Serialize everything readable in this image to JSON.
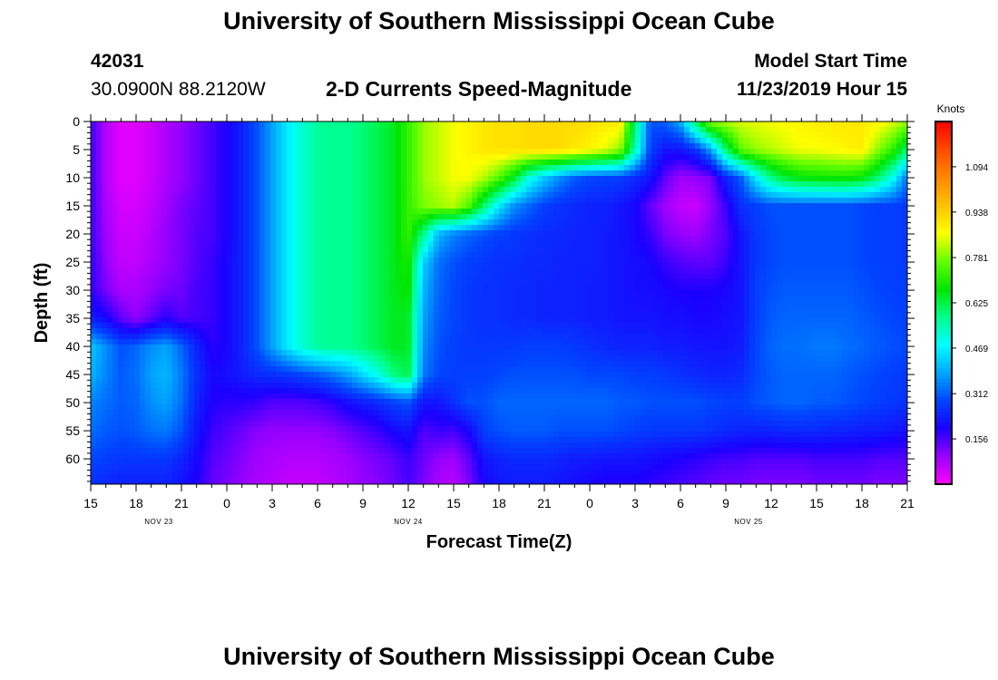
{
  "header": {
    "title": "University of Southern Mississippi Ocean Cube",
    "station_id": "42031",
    "location": "30.0900N 88.2120W",
    "subtitle": "2-D Currents Speed-Magnitude",
    "model_label": "Model Start Time",
    "model_time": "11/23/2019 Hour 15"
  },
  "footer": {
    "title": "University of Southern Mississippi Ocean Cube"
  },
  "chart_data": {
    "type": "heatmap",
    "xlabel": "Forecast Time(Z)",
    "ylabel": "Depth (ft)",
    "x_tick_labels": [
      "15",
      "18",
      "21",
      "0",
      "3",
      "6",
      "9",
      "12",
      "15",
      "18",
      "21",
      "0",
      "3",
      "6",
      "9",
      "12",
      "15",
      "18",
      "21"
    ],
    "x_hours": [
      0,
      54
    ],
    "date_labels": [
      {
        "label": "NOV 23",
        "hour": 4.5
      },
      {
        "label": "NOV 24",
        "hour": 21
      },
      {
        "label": "NOV 25",
        "hour": 43.5
      }
    ],
    "y_ticks": [
      0,
      5,
      10,
      15,
      20,
      25,
      30,
      35,
      40,
      45,
      50,
      55,
      60
    ],
    "ylim": [
      0,
      64.5
    ],
    "colorbar": {
      "label": "Knots",
      "ticks": [
        "1.094",
        "0.938",
        "0.781",
        "0.625",
        "0.469",
        "0.312",
        "0.156"
      ],
      "tick_values": [
        1.094,
        0.938,
        0.781,
        0.625,
        0.469,
        0.312,
        0.156
      ],
      "range": [
        0,
        1.25
      ],
      "colors": [
        "#ff00ff",
        "#9900ff",
        "#1a00ff",
        "#0044ff",
        "#00a8ff",
        "#00ffff",
        "#00ff88",
        "#00e600",
        "#66ff00",
        "#ffff00",
        "#ffc000",
        "#ff8800",
        "#ff4a00",
        "#ff0000"
      ]
    },
    "speed_grid": {
      "hours": [
        0,
        1,
        2,
        3,
        4,
        5,
        6,
        7,
        8,
        9,
        10,
        11,
        12,
        13,
        14,
        15,
        16,
        17,
        18,
        19,
        20,
        21,
        22,
        23,
        24,
        25,
        26,
        27,
        28,
        29,
        30,
        31,
        32,
        33,
        34,
        35,
        36,
        37,
        38,
        39,
        40,
        41,
        42,
        43,
        44,
        45,
        46,
        47,
        48,
        49,
        50,
        51,
        52,
        53,
        54
      ],
      "depths": [
        0,
        5,
        10,
        15,
        20,
        25,
        30,
        35,
        40,
        45,
        50,
        55,
        60,
        64
      ],
      "values": [
        [
          0.17,
          0.07,
          0.03,
          0.03,
          0.05,
          0.08,
          0.1,
          0.13,
          0.16,
          0.19,
          0.24,
          0.3,
          0.38,
          0.46,
          0.52,
          0.56,
          0.57,
          0.57,
          0.59,
          0.62,
          0.65,
          0.72,
          0.8,
          0.83,
          0.86,
          0.88,
          0.9,
          0.91,
          0.91,
          0.92,
          0.92,
          0.92,
          0.92,
          0.91,
          0.9,
          0.9,
          0.6,
          0.3,
          0.32,
          0.39,
          0.61,
          0.8,
          0.82,
          0.84,
          0.85,
          0.86,
          0.87,
          0.88,
          0.89,
          0.9,
          0.9,
          0.9,
          0.88,
          0.85,
          0.8
        ],
        [
          0.17,
          0.07,
          0.03,
          0.03,
          0.05,
          0.08,
          0.1,
          0.13,
          0.16,
          0.19,
          0.24,
          0.3,
          0.38,
          0.46,
          0.52,
          0.56,
          0.57,
          0.57,
          0.59,
          0.62,
          0.65,
          0.72,
          0.8,
          0.83,
          0.86,
          0.88,
          0.9,
          0.91,
          0.91,
          0.92,
          0.92,
          0.92,
          0.9,
          0.88,
          0.85,
          0.8,
          0.55,
          0.28,
          0.22,
          0.22,
          0.26,
          0.38,
          0.6,
          0.76,
          0.8,
          0.82,
          0.84,
          0.86,
          0.86,
          0.87,
          0.88,
          0.89,
          0.8,
          0.72,
          0.6
        ],
        [
          0.17,
          0.07,
          0.03,
          0.03,
          0.05,
          0.08,
          0.1,
          0.13,
          0.16,
          0.19,
          0.24,
          0.3,
          0.38,
          0.46,
          0.52,
          0.56,
          0.57,
          0.57,
          0.59,
          0.62,
          0.65,
          0.72,
          0.8,
          0.83,
          0.86,
          0.86,
          0.82,
          0.75,
          0.65,
          0.5,
          0.42,
          0.36,
          0.31,
          0.29,
          0.28,
          0.28,
          0.25,
          0.22,
          0.14,
          0.09,
          0.1,
          0.12,
          0.24,
          0.31,
          0.46,
          0.58,
          0.64,
          0.67,
          0.68,
          0.69,
          0.69,
          0.67,
          0.6,
          0.5,
          0.33
        ],
        [
          0.17,
          0.08,
          0.04,
          0.04,
          0.06,
          0.09,
          0.12,
          0.14,
          0.16,
          0.19,
          0.24,
          0.3,
          0.38,
          0.46,
          0.52,
          0.56,
          0.57,
          0.57,
          0.59,
          0.62,
          0.65,
          0.72,
          0.78,
          0.8,
          0.82,
          0.75,
          0.6,
          0.46,
          0.36,
          0.32,
          0.28,
          0.26,
          0.25,
          0.24,
          0.24,
          0.22,
          0.2,
          0.14,
          0.09,
          0.06,
          0.05,
          0.1,
          0.17,
          0.26,
          0.28,
          0.3,
          0.3,
          0.3,
          0.3,
          0.3,
          0.3,
          0.29,
          0.28,
          0.28,
          0.27
        ],
        [
          0.17,
          0.09,
          0.05,
          0.05,
          0.07,
          0.1,
          0.12,
          0.15,
          0.16,
          0.19,
          0.24,
          0.3,
          0.38,
          0.46,
          0.52,
          0.56,
          0.57,
          0.57,
          0.59,
          0.62,
          0.65,
          0.72,
          0.58,
          0.4,
          0.35,
          0.32,
          0.3,
          0.28,
          0.27,
          0.26,
          0.25,
          0.25,
          0.24,
          0.24,
          0.23,
          0.22,
          0.2,
          0.17,
          0.12,
          0.1,
          0.09,
          0.12,
          0.15,
          0.22,
          0.27,
          0.29,
          0.3,
          0.3,
          0.3,
          0.3,
          0.3,
          0.29,
          0.28,
          0.28,
          0.27
        ],
        [
          0.18,
          0.1,
          0.06,
          0.06,
          0.08,
          0.1,
          0.12,
          0.15,
          0.17,
          0.2,
          0.24,
          0.3,
          0.38,
          0.46,
          0.52,
          0.56,
          0.57,
          0.57,
          0.59,
          0.62,
          0.65,
          0.7,
          0.43,
          0.33,
          0.3,
          0.28,
          0.27,
          0.26,
          0.26,
          0.25,
          0.25,
          0.24,
          0.24,
          0.24,
          0.23,
          0.22,
          0.21,
          0.2,
          0.17,
          0.15,
          0.14,
          0.14,
          0.17,
          0.22,
          0.27,
          0.29,
          0.3,
          0.3,
          0.3,
          0.3,
          0.3,
          0.29,
          0.28,
          0.28,
          0.27
        ],
        [
          0.18,
          0.12,
          0.08,
          0.08,
          0.1,
          0.12,
          0.13,
          0.16,
          0.17,
          0.2,
          0.24,
          0.3,
          0.38,
          0.46,
          0.52,
          0.56,
          0.57,
          0.57,
          0.59,
          0.62,
          0.65,
          0.68,
          0.4,
          0.32,
          0.29,
          0.27,
          0.26,
          0.26,
          0.25,
          0.25,
          0.24,
          0.24,
          0.24,
          0.23,
          0.23,
          0.22,
          0.21,
          0.21,
          0.2,
          0.19,
          0.19,
          0.19,
          0.2,
          0.22,
          0.28,
          0.3,
          0.31,
          0.31,
          0.31,
          0.31,
          0.31,
          0.3,
          0.29,
          0.28,
          0.28
        ],
        [
          0.23,
          0.2,
          0.14,
          0.1,
          0.14,
          0.18,
          0.15,
          0.16,
          0.17,
          0.2,
          0.24,
          0.3,
          0.38,
          0.46,
          0.52,
          0.56,
          0.57,
          0.57,
          0.59,
          0.62,
          0.65,
          0.65,
          0.38,
          0.31,
          0.29,
          0.27,
          0.26,
          0.26,
          0.25,
          0.25,
          0.24,
          0.24,
          0.24,
          0.23,
          0.23,
          0.22,
          0.22,
          0.22,
          0.21,
          0.21,
          0.2,
          0.2,
          0.21,
          0.22,
          0.28,
          0.31,
          0.32,
          0.32,
          0.32,
          0.32,
          0.32,
          0.31,
          0.3,
          0.29,
          0.28
        ],
        [
          0.42,
          0.36,
          0.3,
          0.32,
          0.36,
          0.38,
          0.32,
          0.24,
          0.18,
          0.2,
          0.24,
          0.3,
          0.38,
          0.46,
          0.52,
          0.56,
          0.57,
          0.57,
          0.59,
          0.62,
          0.65,
          0.65,
          0.36,
          0.3,
          0.28,
          0.27,
          0.27,
          0.27,
          0.27,
          0.28,
          0.28,
          0.28,
          0.27,
          0.26,
          0.25,
          0.24,
          0.24,
          0.24,
          0.23,
          0.23,
          0.22,
          0.22,
          0.22,
          0.23,
          0.29,
          0.32,
          0.33,
          0.33,
          0.34,
          0.34,
          0.33,
          0.32,
          0.31,
          0.3,
          0.29
        ],
        [
          0.4,
          0.35,
          0.31,
          0.33,
          0.38,
          0.4,
          0.34,
          0.26,
          0.2,
          0.21,
          0.23,
          0.25,
          0.26,
          0.27,
          0.29,
          0.31,
          0.34,
          0.38,
          0.44,
          0.5,
          0.58,
          0.62,
          0.34,
          0.29,
          0.28,
          0.28,
          0.28,
          0.29,
          0.3,
          0.3,
          0.3,
          0.3,
          0.3,
          0.29,
          0.29,
          0.29,
          0.28,
          0.28,
          0.27,
          0.26,
          0.25,
          0.24,
          0.24,
          0.25,
          0.29,
          0.31,
          0.32,
          0.32,
          0.32,
          0.32,
          0.31,
          0.3,
          0.29,
          0.28,
          0.27
        ],
        [
          0.35,
          0.33,
          0.31,
          0.32,
          0.36,
          0.38,
          0.33,
          0.24,
          0.19,
          0.18,
          0.18,
          0.17,
          0.15,
          0.15,
          0.15,
          0.16,
          0.18,
          0.21,
          0.23,
          0.25,
          0.28,
          0.3,
          0.22,
          0.22,
          0.26,
          0.3,
          0.3,
          0.32,
          0.32,
          0.32,
          0.32,
          0.32,
          0.32,
          0.32,
          0.32,
          0.31,
          0.31,
          0.3,
          0.3,
          0.3,
          0.3,
          0.29,
          0.28,
          0.28,
          0.3,
          0.31,
          0.32,
          0.32,
          0.31,
          0.31,
          0.3,
          0.29,
          0.28,
          0.27,
          0.26
        ],
        [
          0.33,
          0.31,
          0.3,
          0.31,
          0.33,
          0.34,
          0.3,
          0.22,
          0.17,
          0.15,
          0.13,
          0.11,
          0.1,
          0.1,
          0.1,
          0.1,
          0.11,
          0.13,
          0.15,
          0.17,
          0.2,
          0.22,
          0.15,
          0.17,
          0.16,
          0.2,
          0.28,
          0.3,
          0.31,
          0.31,
          0.31,
          0.3,
          0.3,
          0.3,
          0.3,
          0.29,
          0.28,
          0.27,
          0.27,
          0.27,
          0.27,
          0.26,
          0.25,
          0.24,
          0.24,
          0.24,
          0.25,
          0.25,
          0.25,
          0.24,
          0.24,
          0.23,
          0.23,
          0.22,
          0.21
        ],
        [
          0.29,
          0.28,
          0.27,
          0.27,
          0.27,
          0.27,
          0.24,
          0.2,
          0.15,
          0.13,
          0.11,
          0.09,
          0.08,
          0.07,
          0.07,
          0.07,
          0.08,
          0.09,
          0.11,
          0.12,
          0.14,
          0.17,
          0.13,
          0.1,
          0.09,
          0.14,
          0.22,
          0.24,
          0.25,
          0.25,
          0.25,
          0.24,
          0.23,
          0.23,
          0.22,
          0.22,
          0.22,
          0.21,
          0.2,
          0.19,
          0.18,
          0.17,
          0.16,
          0.16,
          0.15,
          0.15,
          0.15,
          0.15,
          0.16,
          0.16,
          0.16,
          0.16,
          0.15,
          0.15,
          0.15
        ],
        [
          0.26,
          0.25,
          0.24,
          0.24,
          0.24,
          0.24,
          0.22,
          0.19,
          0.14,
          0.12,
          0.1,
          0.08,
          0.07,
          0.06,
          0.06,
          0.06,
          0.07,
          0.08,
          0.1,
          0.11,
          0.13,
          0.16,
          0.12,
          0.08,
          0.07,
          0.12,
          0.2,
          0.22,
          0.23,
          0.23,
          0.23,
          0.22,
          0.21,
          0.2,
          0.19,
          0.19,
          0.19,
          0.18,
          0.17,
          0.16,
          0.15,
          0.14,
          0.13,
          0.13,
          0.12,
          0.12,
          0.12,
          0.12,
          0.13,
          0.13,
          0.13,
          0.13,
          0.12,
          0.12,
          0.12
        ]
      ]
    }
  }
}
